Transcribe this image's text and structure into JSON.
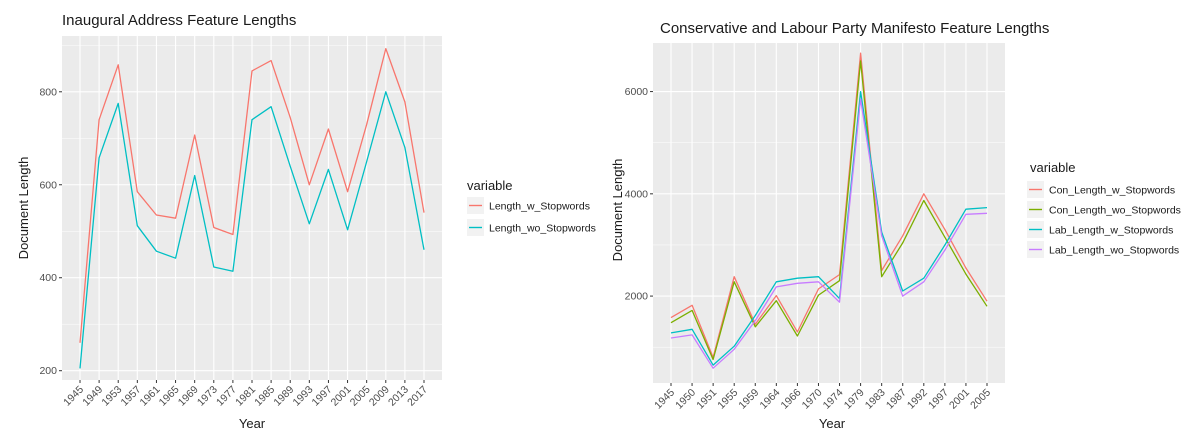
{
  "chart_data": [
    {
      "type": "line",
      "title": "Inaugural Address Feature Lengths",
      "xlabel": "Year",
      "ylabel": "Document Length",
      "x": [
        "1945",
        "1949",
        "1953",
        "1957",
        "1961",
        "1965",
        "1969",
        "1973",
        "1977",
        "1981",
        "1985",
        "1989",
        "1993",
        "1997",
        "2001",
        "2005",
        "2009",
        "2013",
        "2017"
      ],
      "ylim": [
        180,
        920
      ],
      "yticks": [
        200,
        400,
        600,
        800
      ],
      "grid": true,
      "legend_title": "variable",
      "legend_position": "right",
      "series": [
        {
          "name": "Length_w_Stopwords",
          "color": "#F8766D",
          "values": [
            260,
            740,
            858,
            585,
            535,
            528,
            707,
            508,
            493,
            845,
            867,
            745,
            600,
            720,
            585,
            730,
            893,
            778,
            540
          ]
        },
        {
          "name": "Length_wo_Stopwords",
          "color": "#00BFC4",
          "values": [
            205,
            658,
            775,
            512,
            457,
            442,
            620,
            423,
            414,
            740,
            768,
            640,
            516,
            633,
            503,
            650,
            800,
            680,
            460
          ]
        }
      ]
    },
    {
      "type": "line",
      "title": "Conservative and Labour Party Manifesto Feature Lengths",
      "xlabel": "Year",
      "ylabel": "Document Length",
      "x": [
        "1945",
        "1950",
        "1951",
        "1955",
        "1959",
        "1964",
        "1966",
        "1970",
        "1974",
        "1979",
        "1983",
        "1987",
        "1992",
        "1997",
        "2001",
        "2005"
      ],
      "ylim": [
        300,
        6950
      ],
      "yticks": [
        2000,
        4000,
        6000
      ],
      "grid": true,
      "legend_title": "variable",
      "legend_position": "right",
      "series": [
        {
          "name": "Con_Length_w_Stopwords",
          "color": "#F8766D",
          "values": [
            1580,
            1820,
            800,
            2380,
            1450,
            2010,
            1300,
            2140,
            2420,
            6750,
            2500,
            3180,
            4000,
            3300,
            2550,
            1900
          ]
        },
        {
          "name": "Con_Length_wo_Stopwords",
          "color": "#7CAE00",
          "values": [
            1480,
            1720,
            760,
            2280,
            1400,
            1910,
            1220,
            2020,
            2300,
            6600,
            2380,
            3040,
            3870,
            3150,
            2430,
            1800
          ]
        },
        {
          "name": "Lab_Length_w_Stopwords",
          "color": "#00BFC4",
          "values": [
            1280,
            1350,
            650,
            1020,
            1620,
            2280,
            2350,
            2380,
            1950,
            6000,
            3250,
            2100,
            2350,
            3000,
            3700,
            3730
          ]
        },
        {
          "name": "Lab_Length_wo_Stopwords",
          "color": "#C77CFF",
          "values": [
            1180,
            1240,
            590,
            960,
            1520,
            2180,
            2250,
            2280,
            1880,
            5850,
            3180,
            2000,
            2280,
            2900,
            3600,
            3620
          ]
        }
      ]
    }
  ]
}
